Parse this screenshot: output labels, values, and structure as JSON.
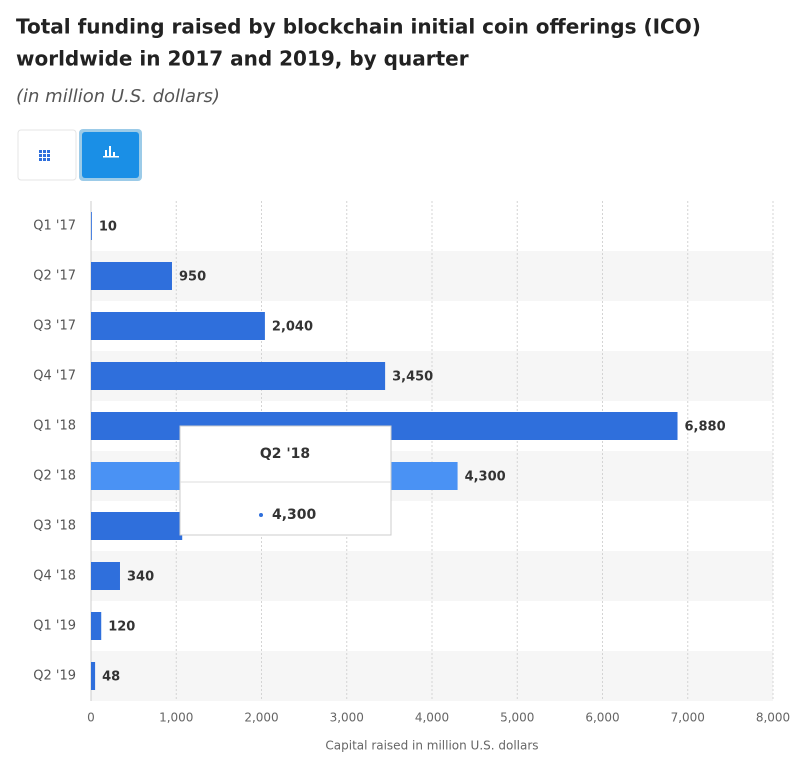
{
  "chart_data": {
    "type": "barh",
    "title": [
      "Total funding raised by blockchain initial coin offerings (ICO)",
      "worldwide in 2017 and 2019, by quarter"
    ],
    "subtitle": "(in million U.S. dollars)",
    "categories": [
      "Q1 '17",
      "Q2 '17",
      "Q3 '17",
      "Q4 '17",
      "Q1 '18",
      "Q2 '18",
      "Q3 '18",
      "Q4 '18",
      "Q1 '19",
      "Q2 '19"
    ],
    "values": [
      10,
      950,
      2040,
      3450,
      6880,
      4300,
      1070,
      340,
      120,
      48
    ],
    "value_labels": [
      "10",
      "950",
      "2,040",
      "3,450",
      "6,880",
      "4,300",
      null,
      "340",
      "120",
      "48"
    ],
    "colors": [
      "#2f6fdc",
      "#2f6fdc",
      "#2f6fdc",
      "#2f6fdc",
      "#2f6fdc",
      "#4a92f4",
      "#2f6fdc",
      "#2f6fdc",
      "#2f6fdc",
      "#2f6fdc"
    ],
    "xlabel": "Capital raised in million U.S. dollars",
    "xlim": [
      0,
      8000
    ],
    "xticks": [
      0,
      {
        "value": 1000,
        "label": "1,000"
      },
      {
        "value": 2000,
        "label": "2,000"
      },
      {
        "value": 3000,
        "label": "3,000"
      },
      {
        "value": 4000,
        "label": "4,000"
      },
      {
        "value": 5000,
        "label": "5,000"
      },
      {
        "value": 6000,
        "label": "6,000"
      },
      {
        "value": 7000,
        "label": "7,000"
      },
      {
        "value": 8000,
        "label": "8,000"
      }
    ],
    "grid": true,
    "tooltip": {
      "category": "Q2 '18",
      "value_label": "4,300"
    }
  }
}
